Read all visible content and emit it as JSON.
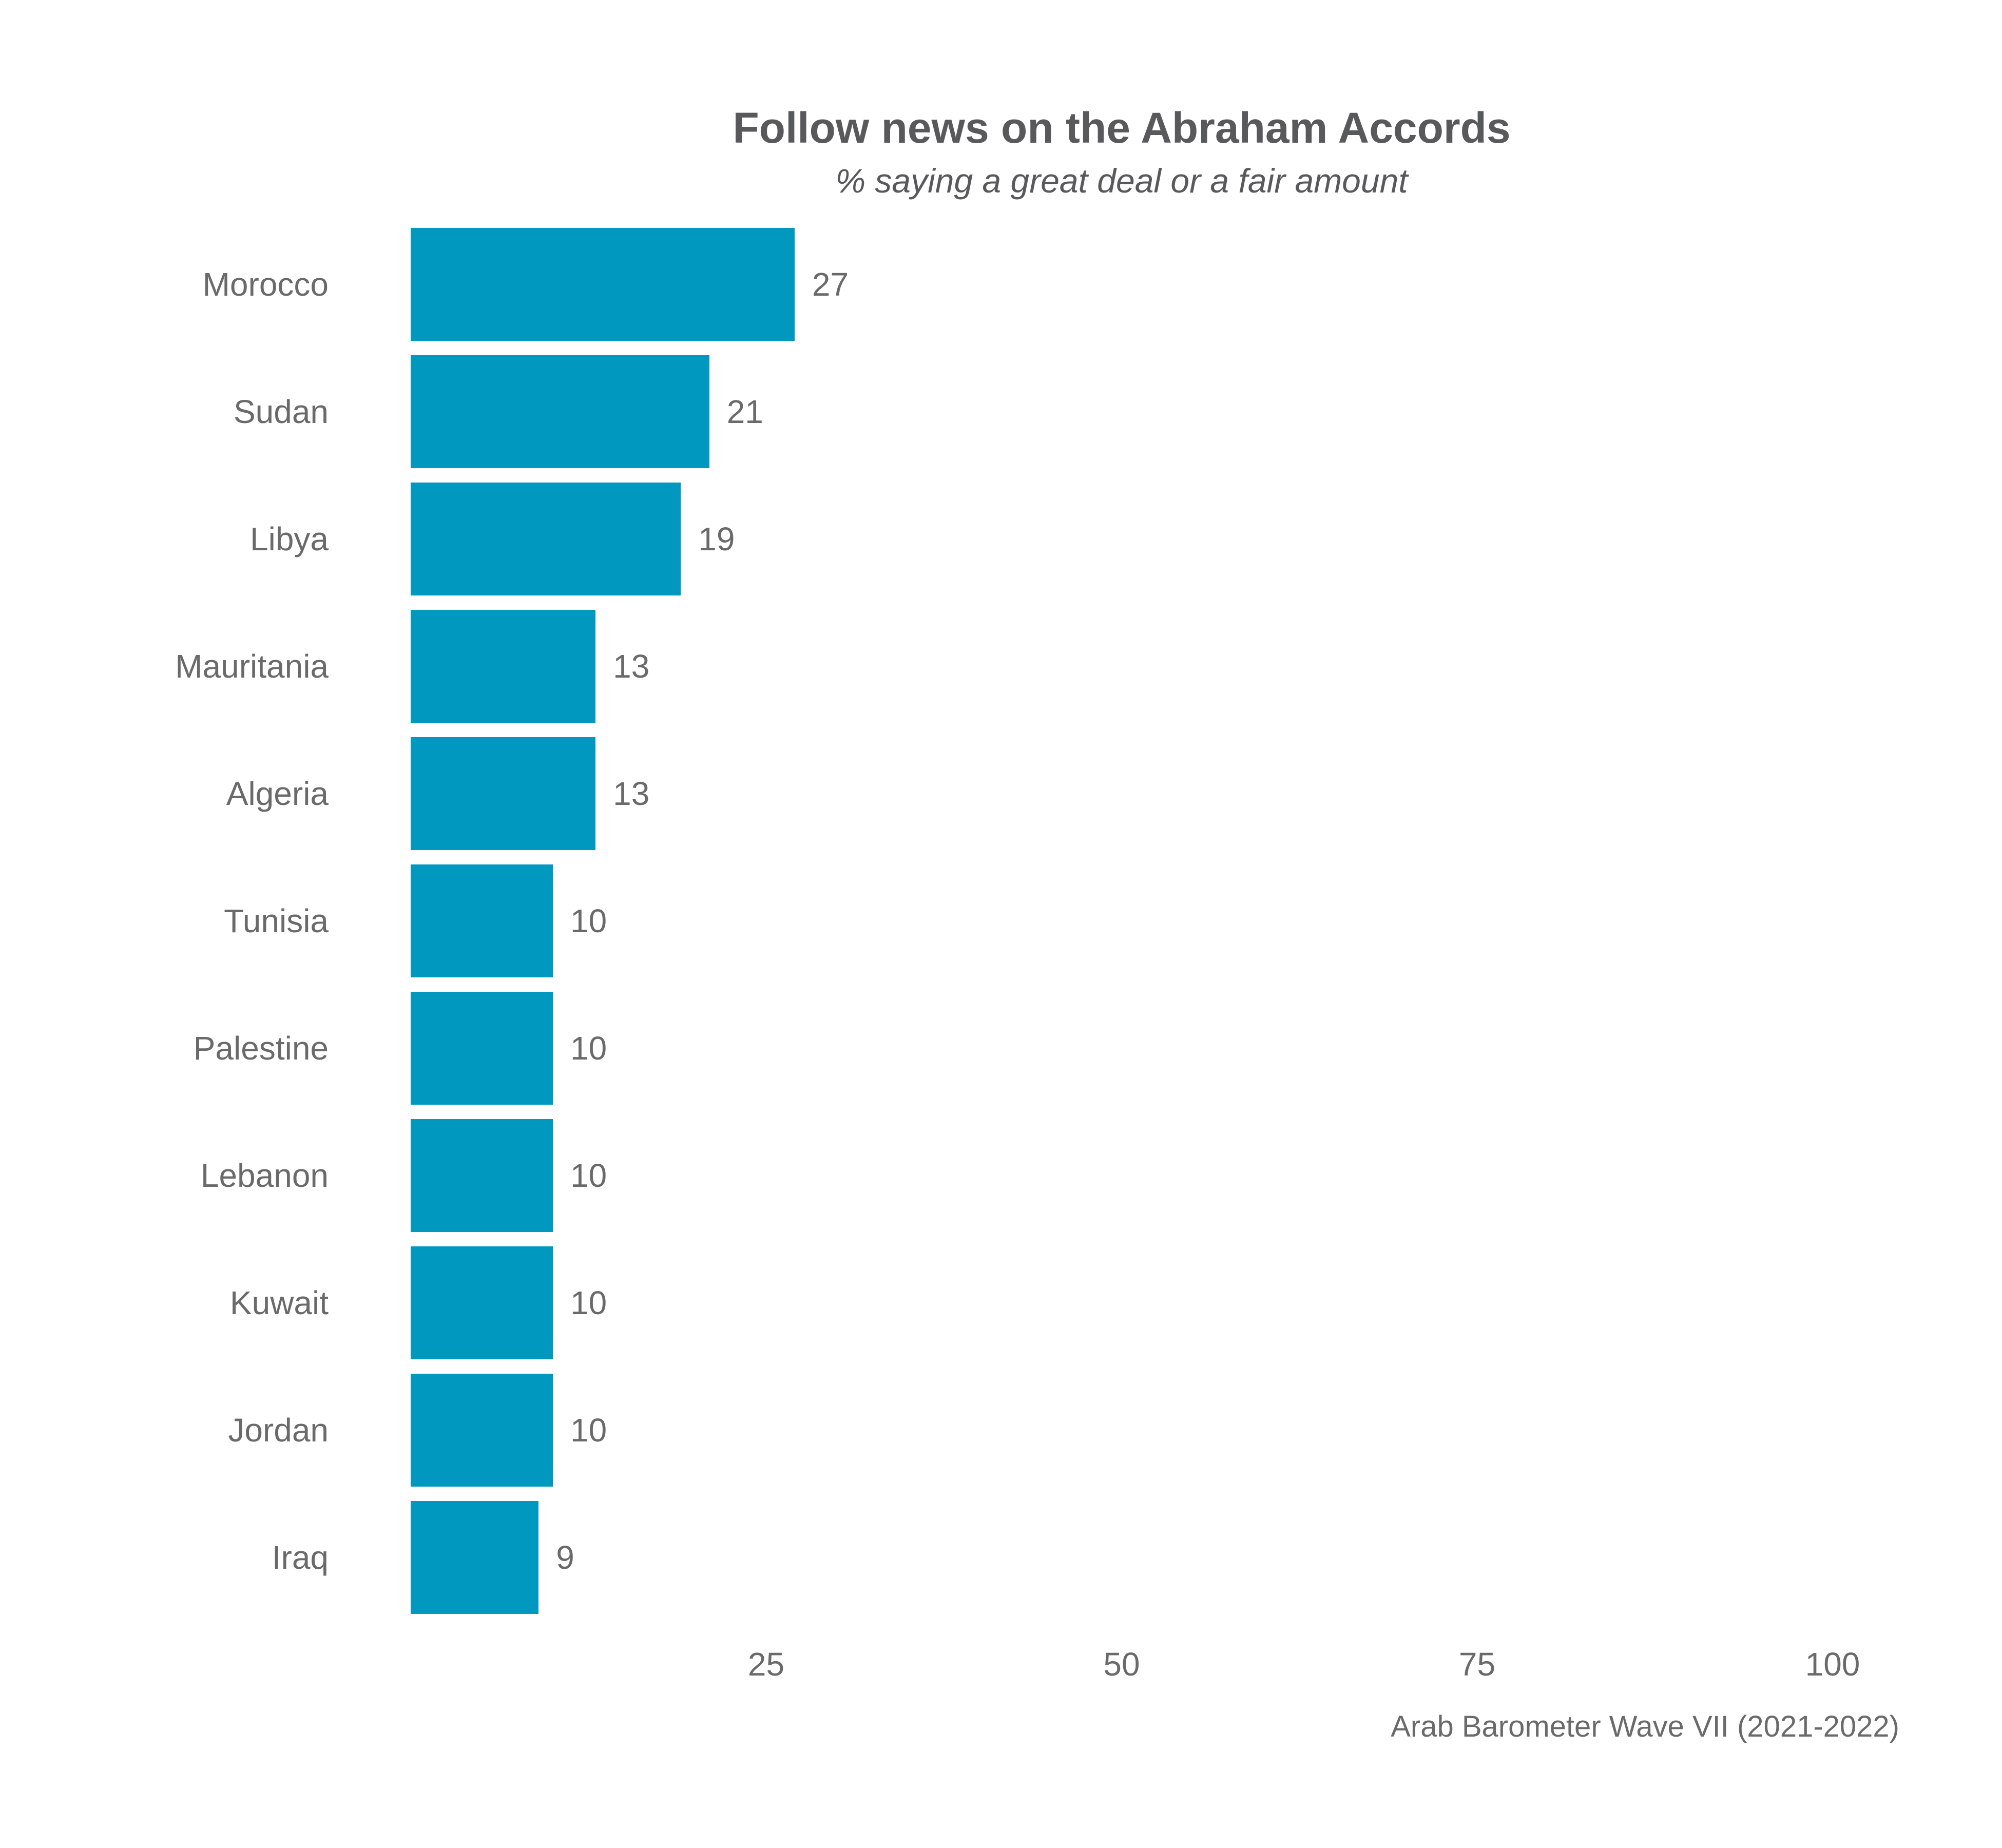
{
  "chart_data": {
    "type": "bar",
    "orientation": "horizontal",
    "title": "Follow news on the Abraham Accords",
    "subtitle": "% saying a great deal or a fair amount",
    "source": "Arab Barometer Wave VII (2021-2022)",
    "categories": [
      "Morocco",
      "Sudan",
      "Libya",
      "Mauritania",
      "Algeria",
      "Tunisia",
      "Palestine",
      "Lebanon",
      "Kuwait",
      "Jordan",
      "Iraq"
    ],
    "values": [
      27,
      21,
      19,
      13,
      13,
      10,
      10,
      10,
      10,
      10,
      9
    ],
    "xlabel": "",
    "ylabel": "",
    "xlim": [
      0,
      100
    ],
    "x_ticks": [
      25,
      50,
      75,
      100
    ],
    "grid": false,
    "legend_position": "none",
    "bar_color": "#0098BE",
    "title_color": "#58595B",
    "label_color": "#6A6A6B",
    "background_color": "#FFFFFF"
  }
}
